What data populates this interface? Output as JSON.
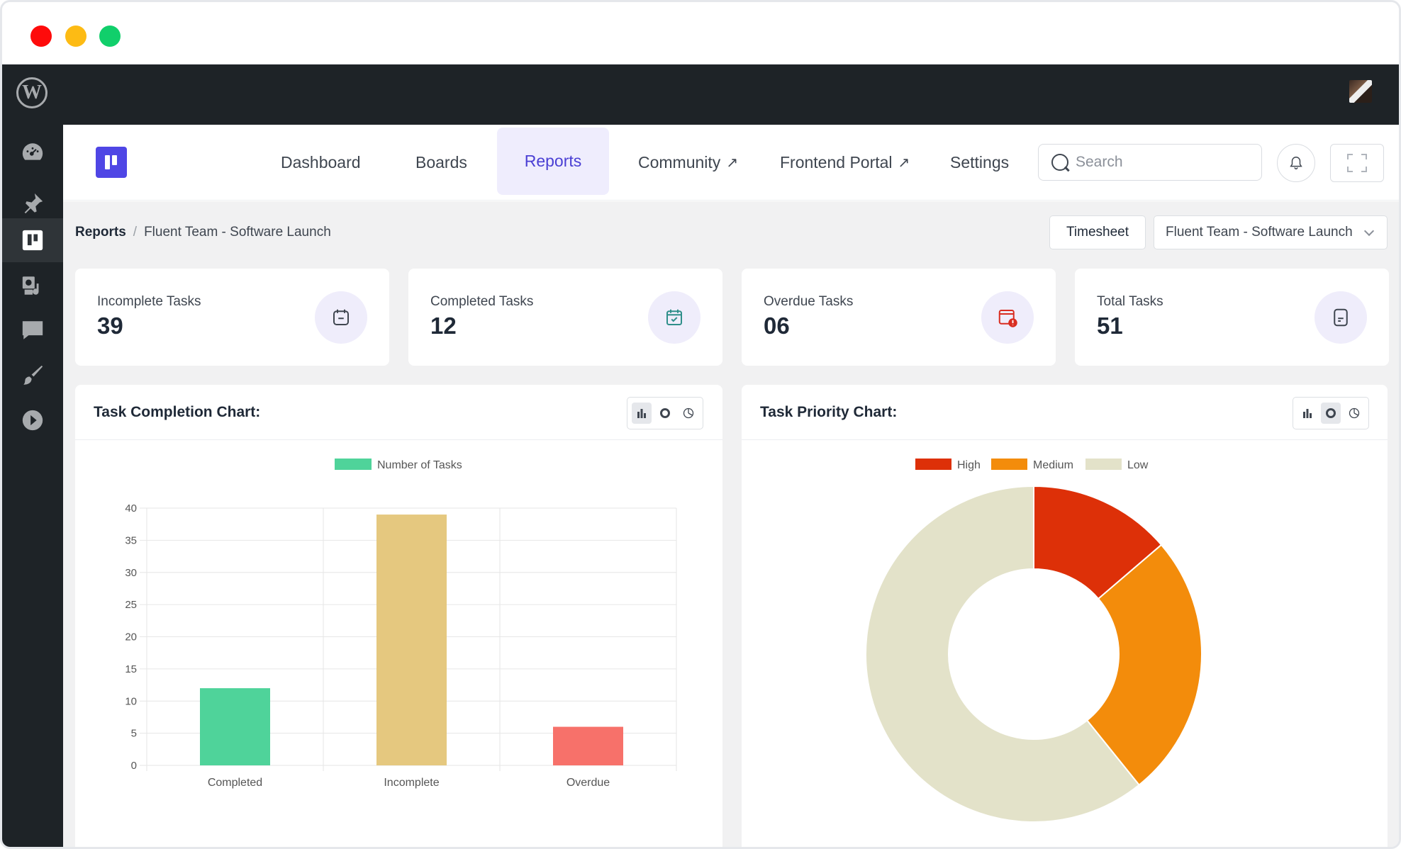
{
  "nav": {
    "dashboard": "Dashboard",
    "boards": "Boards",
    "reports": "Reports",
    "community": "Community",
    "frontend_portal": "Frontend Portal",
    "settings": "Settings",
    "external_glyph": "↗"
  },
  "search": {
    "placeholder": "Search",
    "value": ""
  },
  "breadcrumb": {
    "root": "Reports",
    "separator": "/",
    "current": "Fluent Team - Software Launch"
  },
  "toolbar": {
    "timesheet_label": "Timesheet",
    "board_select": "Fluent Team - Software Launch"
  },
  "stats": [
    {
      "label": "Incomplete Tasks",
      "value": "39",
      "icon": "calendar-minus-icon",
      "icon_color": "#3f4650"
    },
    {
      "label": "Completed Tasks",
      "value": "12",
      "icon": "calendar-check-icon",
      "icon_color": "#2f8f8a"
    },
    {
      "label": "Overdue Tasks",
      "value": "06",
      "icon": "calendar-alert-icon",
      "icon_color": "#d92d20"
    },
    {
      "label": "Total Tasks",
      "value": "51",
      "icon": "document-icon",
      "icon_color": "#3f4650"
    }
  ],
  "charts": {
    "completion_title": "Task Completion Chart:",
    "priority_title": "Task Priority Chart:"
  },
  "chart_data": [
    {
      "type": "bar",
      "title": "Task Completion Chart:",
      "categories": [
        "Completed",
        "Incomplete",
        "Overdue"
      ],
      "series": [
        {
          "name": "Number of Tasks",
          "values": [
            12,
            39,
            6
          ]
        }
      ],
      "bar_colors": [
        "#4fd39a",
        "#e5c87f",
        "#f7716a"
      ],
      "legend_color": "#4fd39a",
      "ylim": [
        0,
        40
      ],
      "yticks": [
        0,
        5,
        10,
        15,
        20,
        25,
        30,
        35,
        40
      ],
      "grid": true,
      "legend": "top"
    },
    {
      "type": "pie",
      "title": "Task Priority Chart:",
      "donut": true,
      "categories": [
        "High",
        "Medium",
        "Low"
      ],
      "values": [
        7,
        13,
        31
      ],
      "colors": [
        "#dd3008",
        "#f38c0b",
        "#e3e2c9"
      ],
      "legend": "top"
    }
  ],
  "colors": {
    "accent": "#4f46e5",
    "admin_bar": "#1e2327"
  }
}
